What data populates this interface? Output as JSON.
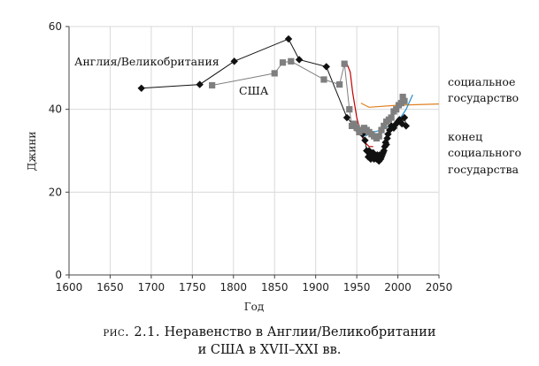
{
  "chart_data": {
    "type": "scatter",
    "xlabel": "Год",
    "ylabel": "Джини",
    "xlim": [
      1600,
      2050
    ],
    "ylim": [
      0,
      60
    ],
    "xticks": [
      1600,
      1650,
      1700,
      1750,
      1800,
      1850,
      1900,
      1950,
      2000,
      2050
    ],
    "yticks": [
      0,
      20,
      40,
      60
    ],
    "grid": true,
    "series": [
      {
        "name": "Англия/Великобритания",
        "marker": "diamond",
        "color": "#111111",
        "connected": true,
        "x": [
          1688,
          1759,
          1801,
          1867,
          1880,
          1913,
          1938,
          1949,
          1954,
          1957,
          1960,
          1962,
          1964,
          1965,
          1966,
          1967,
          1968,
          1969,
          1970,
          1971,
          1972,
          1973,
          1974,
          1975,
          1976,
          1977,
          1978,
          1979,
          1980,
          1981,
          1982,
          1983,
          1984,
          1985,
          1986,
          1987,
          1988,
          1990,
          1992,
          1995,
          1998,
          2000,
          2002,
          2005,
          2008,
          2010
        ],
        "y": [
          45.1,
          46.0,
          51.6,
          57.0,
          52.0,
          50.3,
          38.0,
          35.5,
          34.5,
          34.0,
          32.5,
          30.0,
          28.5,
          30.0,
          29.0,
          28.0,
          29.5,
          28.5,
          29.5,
          28.0,
          29.0,
          28.5,
          28.0,
          29.0,
          28.5,
          27.5,
          29.0,
          28.0,
          28.5,
          29.0,
          29.5,
          30.0,
          31.0,
          32.0,
          31.5,
          33.0,
          34.0,
          35.0,
          36.0,
          35.5,
          36.5,
          37.0,
          37.5,
          36.5,
          38.0,
          36.0
        ]
      },
      {
        "name": "США",
        "marker": "square",
        "color": "#7f7f7f",
        "connected": true,
        "x": [
          1774,
          1850,
          1860,
          1870,
          1910,
          1929,
          1935,
          1941,
          1944,
          1947,
          1950,
          1953,
          1956,
          1959,
          1962,
          1965,
          1968,
          1971,
          1974,
          1977,
          1980,
          1983,
          1986,
          1989,
          1992,
          1995,
          1998,
          2001,
          2004,
          2006,
          2008
        ],
        "y": [
          45.8,
          48.7,
          51.3,
          51.6,
          47.2,
          46.0,
          51.0,
          40.0,
          36.0,
          36.5,
          35.5,
          34.5,
          35.0,
          35.5,
          35.0,
          34.5,
          34.0,
          33.5,
          33.0,
          33.5,
          35.0,
          36.0,
          37.0,
          37.5,
          38.0,
          39.5,
          40.0,
          41.0,
          41.5,
          43.0,
          42.0
        ]
      }
    ],
    "trend_lines": [
      {
        "name": "socialnoe-red",
        "color": "#c00000",
        "x": [
          1938,
          1942,
          1945,
          1950,
          1955,
          1960,
          1965,
          1970
        ],
        "y": [
          51.0,
          49.0,
          44.0,
          38.0,
          34.0,
          32.0,
          31.0,
          31.0
        ]
      },
      {
        "name": "socialnoe-orange",
        "color": "#e08020",
        "x": [
          1955,
          1960,
          1965,
          2000,
          2050
        ],
        "y": [
          41.5,
          41.0,
          40.5,
          41.0,
          41.3
        ]
      },
      {
        "name": "konec-blue",
        "color": "#1f8fd0",
        "x": [
          1960,
          1970,
          1980,
          1990,
          2000,
          2010,
          2018
        ],
        "y": [
          33.5,
          34.5,
          35.0,
          36.0,
          37.0,
          40.0,
          43.5
        ]
      }
    ],
    "annotations": [
      {
        "text": "Англия/Великобритания",
        "color": "#111111"
      },
      {
        "text": "США",
        "color": "#111111"
      },
      {
        "text": "социальное",
        "color": "#c00000"
      },
      {
        "text": "государство",
        "color": "#c00000"
      },
      {
        "text": "конец",
        "color": "#1f3a99"
      },
      {
        "text": "социального",
        "color": "#1f3a99"
      },
      {
        "text": "государства",
        "color": "#1f3a99"
      }
    ]
  },
  "caption": {
    "prefix": "рис. 2.1.",
    "line1": "Неравенство в Англии/Великобритании",
    "line2": "и США в XVII–XXI вв."
  }
}
